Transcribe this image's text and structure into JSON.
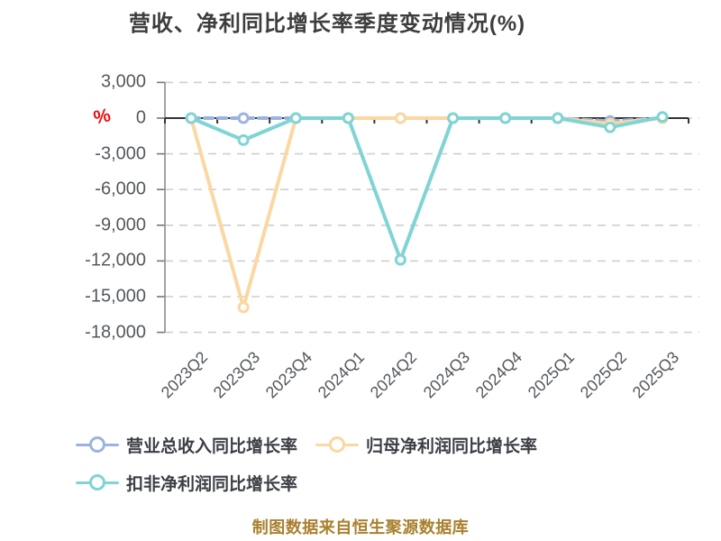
{
  "title": "营收、净利同比增长率季度变动情况(%)",
  "y_axis": {
    "unit": "%",
    "tick_labels": [
      "3,000",
      "0",
      "-3,000",
      "-6,000",
      "-9,000",
      "-12,000",
      "-15,000",
      "-18,000"
    ],
    "tick_values": [
      3000,
      0,
      -3000,
      -6000,
      -9000,
      -12000,
      -15000,
      -18000
    ]
  },
  "footer": "制图数据来自恒生聚源数据库",
  "colors": {
    "revenue_series": "#9BB3E2",
    "net_profit_series": "#FBD7A2",
    "non_gaap_series": "#7FD4D4",
    "unit_label": "#F10D0D",
    "footer_text": "#A9802E",
    "axis_label": "#54585D",
    "title_text": "#3D3D3D",
    "gridline": "#CFCFCF",
    "x_axis_line": "#333333",
    "y_axis_line": "#8C8C8C"
  },
  "chart_data": {
    "type": "line",
    "title": "营收、净利同比增长率季度变动情况(%)",
    "ylabel": "%",
    "ylim": [
      -18000,
      3000
    ],
    "y_tick_step": 3000,
    "grid": true,
    "legend_position": "bottom",
    "categories": [
      "2023Q2",
      "2023Q3",
      "2023Q4",
      "2024Q1",
      "2024Q2",
      "2024Q3",
      "2024Q4",
      "2025Q1",
      "2025Q2",
      "2025Q3"
    ],
    "series": [
      {
        "name": "营业总收入同比增长率",
        "color": "#9BB3E2",
        "line_style": "dashed",
        "values": [
          0,
          0,
          0,
          0,
          0,
          0,
          0,
          0,
          -250,
          0
        ]
      },
      {
        "name": "归母净利润同比增长率",
        "color": "#FBD7A2",
        "line_style": "solid",
        "values": [
          0,
          -15900,
          0,
          0,
          0,
          0,
          0,
          0,
          -480,
          0
        ]
      },
      {
        "name": "扣非净利润同比增长率",
        "color": "#7FD4D4",
        "line_style": "solid",
        "values": [
          0,
          -1850,
          0,
          0,
          -11900,
          0,
          0,
          0,
          -770,
          100
        ]
      }
    ]
  }
}
